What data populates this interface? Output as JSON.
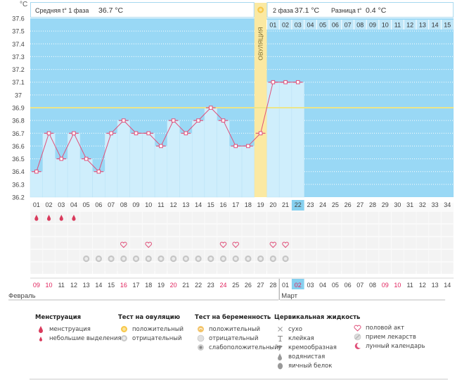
{
  "chart_data": {
    "type": "line",
    "y_unit": "°C",
    "ylim": [
      36.2,
      37.6
    ],
    "y_ticks": [
      "37.6",
      "37.5",
      "37.4",
      "37.3",
      "37.2",
      "37.1",
      "37",
      "36.9",
      "36.8",
      "36.7",
      "36.6",
      "36.5",
      "36.4",
      "36.3",
      "36.2"
    ],
    "days": 34,
    "x_labels": [
      "01",
      "02",
      "03",
      "04",
      "05",
      "06",
      "07",
      "08",
      "09",
      "10",
      "11",
      "12",
      "13",
      "14",
      "15",
      "16",
      "17",
      "18",
      "19",
      "20",
      "21",
      "22",
      "23",
      "24",
      "25",
      "26",
      "27",
      "28",
      "29",
      "30",
      "31",
      "32",
      "33",
      "34"
    ],
    "temperature": [
      36.4,
      36.7,
      36.5,
      36.7,
      36.5,
      36.4,
      36.7,
      36.8,
      36.7,
      36.7,
      36.6,
      36.8,
      36.7,
      36.8,
      36.9,
      36.8,
      36.6,
      36.6,
      36.7,
      37.1,
      37.1,
      37.1
    ],
    "coverline": 36.9,
    "ovulation_day": 19,
    "ovulation_label": "ОВУЛЯЦИЯ",
    "current_day": 22,
    "phase1_title": "Средняя t° 1 фаза",
    "phase1_value": "36.7 °C",
    "phase2_title": "2 фаза",
    "phase2_value": "37.1 °C",
    "diff_title": "Разница t°",
    "diff_value": "0.4 °C",
    "phase2_day_labels": [
      "01",
      "02",
      "03",
      "04",
      "05",
      "06",
      "07",
      "08",
      "09",
      "10",
      "11",
      "12",
      "13",
      "14",
      "15"
    ],
    "menstruation_days": [
      1,
      2,
      3,
      4
    ],
    "intercourse_days": [
      8,
      10,
      16,
      17,
      20,
      21
    ],
    "ovulation_test_negative_days": [
      5,
      6,
      7,
      8,
      9,
      10,
      11,
      12,
      13,
      14,
      15,
      16,
      17,
      18,
      19,
      20,
      21
    ],
    "dates": [
      "09",
      "10",
      "11",
      "12",
      "13",
      "14",
      "15",
      "16",
      "17",
      "18",
      "19",
      "20",
      "21",
      "22",
      "23",
      "24",
      "25",
      "26",
      "27",
      "28",
      "01",
      "02",
      "03",
      "04",
      "05",
      "06",
      "07",
      "08",
      "09",
      "10",
      "11",
      "12",
      "13",
      "14"
    ],
    "red_date_days": [
      1,
      2,
      8,
      12,
      16,
      22,
      29,
      30
    ],
    "month_left": "Февраль",
    "month_right": "Март",
    "month_right_start_day": 21
  },
  "colors": {
    "line": "#e0507a",
    "band": "#99d8f5",
    "bar": "#cfeefc",
    "ovulation": "#fbe9a2",
    "coverline": "#ece58a",
    "current": "#86d0ef"
  },
  "legend": {
    "menstruation": {
      "title": "Менструация",
      "items": [
        "менструация",
        "небольшие выделения"
      ]
    },
    "ovulation_test": {
      "title": "Тест на овуляцию",
      "items": [
        "положительный",
        "отрицательный"
      ]
    },
    "pregnancy_test": {
      "title": "Тест на беременность",
      "items": [
        "положительный",
        "отрицательный",
        "слабоположительный"
      ]
    },
    "cervical": {
      "title": "Цервикальная жидкость",
      "items": [
        "сухо",
        "клейкая",
        "кремообразная",
        "водянистая",
        "яичный белок"
      ]
    },
    "other": {
      "items": [
        "половой акт",
        "прием лекарств",
        "лунный календарь"
      ]
    }
  }
}
